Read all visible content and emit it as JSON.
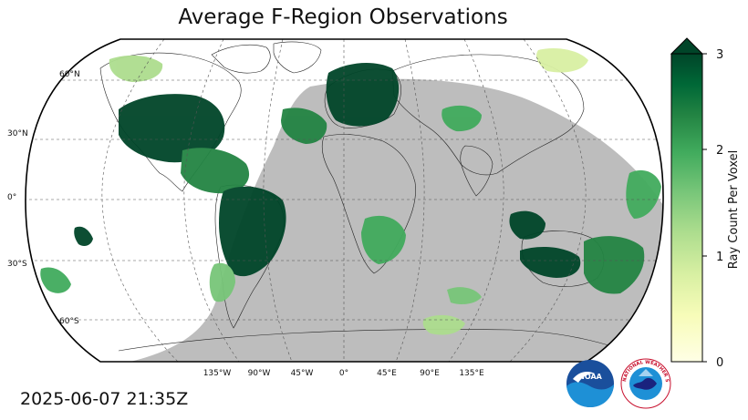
{
  "title": "Average F-Region Observations",
  "timestamp": "2025-06-07 21:35Z",
  "lat_labels": [
    "60°N",
    "30°N",
    "0°",
    "30°S",
    "60°S"
  ],
  "lon_labels": [
    "135°W",
    "90°W",
    "45°W",
    "0°",
    "45°E",
    "90°E",
    "135°E"
  ],
  "colorbar": {
    "label": "Ray Count Per Voxel",
    "ticks": [
      "0",
      "1",
      "2",
      "3"
    ],
    "min": 0,
    "max": 3,
    "extend": "max",
    "colormap": "YlGn",
    "colors": [
      "#ffffe5",
      "#f7fcb9",
      "#d9f0a3",
      "#addd8e",
      "#78c679",
      "#41ab5d",
      "#238443",
      "#006837",
      "#004529"
    ]
  },
  "map": {
    "projection": "Robinson",
    "night_shade_color": "#bdbdbd",
    "grid": true
  },
  "logos": {
    "noaa_text": "NOAA",
    "nws_text": "NATIONAL WEATHER SERVICE"
  }
}
